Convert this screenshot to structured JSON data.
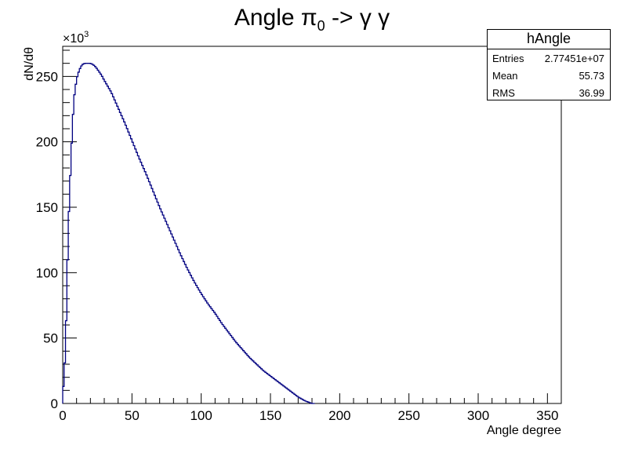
{
  "chart_data": {
    "type": "line",
    "title_prefix": "Angle ",
    "title_symbol": "π",
    "title_sub": "0",
    "title_suffix": " -> γ γ",
    "xlabel": "Angle degree",
    "ylabel": "dN/dθ",
    "y_multiplier": "×10",
    "y_multiplier_exp": "3",
    "xlim": [
      0,
      360
    ],
    "ylim": [
      0,
      273
    ],
    "x_ticks": [
      0,
      50,
      100,
      150,
      200,
      250,
      300,
      350
    ],
    "y_ticks": [
      0,
      50,
      100,
      150,
      200,
      250
    ],
    "series_color": "#000080",
    "x": [
      0,
      2,
      4,
      6,
      8,
      10,
      12,
      14,
      16,
      18,
      20,
      22,
      24,
      26,
      28,
      30,
      35,
      40,
      45,
      50,
      55,
      60,
      65,
      70,
      75,
      80,
      85,
      90,
      95,
      100,
      105,
      110,
      115,
      120,
      125,
      130,
      135,
      140,
      145,
      150,
      155,
      160,
      165,
      170,
      175,
      180,
      182,
      360
    ],
    "y": [
      4,
      40,
      133,
      188,
      232,
      248,
      255,
      259,
      260,
      260,
      260,
      259,
      257,
      254,
      251,
      247,
      238,
      226,
      214,
      201,
      188,
      176,
      163,
      150,
      138,
      126,
      114,
      103,
      93,
      84,
      76,
      69,
      61,
      54,
      47,
      41,
      35,
      30,
      25,
      21,
      17,
      13,
      9,
      5,
      2,
      0,
      0,
      0
    ]
  },
  "stats": {
    "name": "hAngle",
    "rows": [
      {
        "label": "Entries",
        "value": "2.77451e+07"
      },
      {
        "label": "Mean",
        "value": "55.73"
      },
      {
        "label": "RMS",
        "value": "36.99"
      }
    ]
  }
}
